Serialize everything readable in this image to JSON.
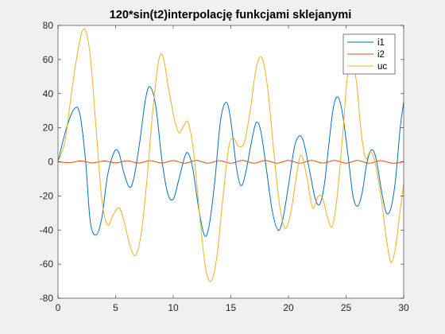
{
  "chart_data": {
    "type": "line",
    "title": "120*sin(t2)interpolację funkcjami sklejanymi",
    "xlabel": "",
    "ylabel": "",
    "xlim": [
      0,
      30
    ],
    "ylim": [
      -80,
      80
    ],
    "xticks": [
      0,
      5,
      10,
      15,
      20,
      25,
      30
    ],
    "yticks": [
      -80,
      -60,
      -40,
      -20,
      0,
      20,
      40,
      60,
      80
    ],
    "xtick_labels": [
      "0",
      "5",
      "10",
      "15",
      "20",
      "25",
      "30"
    ],
    "ytick_labels": [
      "-80",
      "-60",
      "-40",
      "-20",
      "0",
      "20",
      "40",
      "60",
      "80"
    ],
    "grid": false,
    "legend_position": "top-right",
    "series": [
      {
        "name": "i1",
        "color": "#0072BD",
        "points": [
          [
            0,
            0
          ],
          [
            0.7,
            19
          ],
          [
            1.4,
            31
          ],
          [
            1.9,
            28
          ],
          [
            2.4,
            0
          ],
          [
            2.8,
            -35
          ],
          [
            3.3,
            -43
          ],
          [
            3.8,
            -33
          ],
          [
            4.3,
            -8
          ],
          [
            4.9,
            6
          ],
          [
            5.3,
            5
          ],
          [
            5.7,
            -6
          ],
          [
            6.2,
            -15
          ],
          [
            6.6,
            -9
          ],
          [
            7.1,
            12
          ],
          [
            7.6,
            37
          ],
          [
            8.0,
            44
          ],
          [
            8.5,
            32
          ],
          [
            9.0,
            2
          ],
          [
            9.5,
            -18
          ],
          [
            10.0,
            -22
          ],
          [
            10.5,
            -10
          ],
          [
            11.0,
            3
          ],
          [
            11.3,
            5
          ],
          [
            11.7,
            -4
          ],
          [
            12.2,
            -27
          ],
          [
            12.7,
            -43
          ],
          [
            13.1,
            -38
          ],
          [
            13.6,
            -12
          ],
          [
            14.1,
            24
          ],
          [
            14.6,
            35
          ],
          [
            15.0,
            24
          ],
          [
            15.5,
            -4
          ],
          [
            15.9,
            -14
          ],
          [
            16.3,
            -6
          ],
          [
            16.8,
            12
          ],
          [
            17.2,
            23
          ],
          [
            17.6,
            18
          ],
          [
            18.1,
            -5
          ],
          [
            18.6,
            -29
          ],
          [
            19.1,
            -40
          ],
          [
            19.5,
            -34
          ],
          [
            20.0,
            -14
          ],
          [
            20.5,
            8
          ],
          [
            20.9,
            15
          ],
          [
            21.3,
            12
          ],
          [
            21.8,
            -4
          ],
          [
            22.3,
            -21
          ],
          [
            22.7,
            -25
          ],
          [
            23.1,
            -14
          ],
          [
            23.5,
            10
          ],
          [
            23.9,
            32
          ],
          [
            24.3,
            38
          ],
          [
            24.7,
            28
          ],
          [
            25.2,
            2
          ],
          [
            25.6,
            -20
          ],
          [
            26.0,
            -26
          ],
          [
            26.4,
            -18
          ],
          [
            26.8,
            -1
          ],
          [
            27.2,
            7
          ],
          [
            27.6,
            2
          ],
          [
            28.1,
            -18
          ],
          [
            28.5,
            -30
          ],
          [
            28.9,
            -27
          ],
          [
            29.3,
            -10
          ],
          [
            29.7,
            20
          ],
          [
            30.0,
            35
          ]
        ]
      },
      {
        "name": "i2",
        "color": "#D95319",
        "points": [
          [
            0,
            0
          ],
          [
            1.0,
            -0.5
          ],
          [
            2.0,
            0.5
          ],
          [
            3.0,
            -0.6
          ],
          [
            4.0,
            0.5
          ],
          [
            5.0,
            -0.6
          ],
          [
            6.0,
            0.6
          ],
          [
            7.0,
            -0.7
          ],
          [
            8.0,
            0.7
          ],
          [
            9.0,
            -0.7
          ],
          [
            10.0,
            0.7
          ],
          [
            11.0,
            -0.8
          ],
          [
            12.0,
            0.8
          ],
          [
            13.0,
            -0.8
          ],
          [
            14.0,
            0.7
          ],
          [
            15.0,
            -0.8
          ],
          [
            16.0,
            0.8
          ],
          [
            17.0,
            -0.8
          ],
          [
            18.0,
            0.8
          ],
          [
            19.0,
            -0.8
          ],
          [
            20.0,
            0.8
          ],
          [
            21.0,
            -0.8
          ],
          [
            22.0,
            0.8
          ],
          [
            23.0,
            -0.7
          ],
          [
            24.0,
            0.8
          ],
          [
            25.0,
            -0.8
          ],
          [
            26.0,
            0.8
          ],
          [
            27.0,
            -0.8
          ],
          [
            28.0,
            0.7
          ],
          [
            29.0,
            -0.8
          ],
          [
            30.0,
            0
          ]
        ]
      },
      {
        "name": "uc",
        "color": "#EDB120",
        "points": [
          [
            0,
            0
          ],
          [
            0.6,
            12
          ],
          [
            1.2,
            42
          ],
          [
            1.8,
            68
          ],
          [
            2.3,
            78
          ],
          [
            2.8,
            62
          ],
          [
            3.3,
            20
          ],
          [
            3.8,
            -22
          ],
          [
            4.3,
            -37
          ],
          [
            4.8,
            -31
          ],
          [
            5.3,
            -27
          ],
          [
            5.7,
            -34
          ],
          [
            6.2,
            -48
          ],
          [
            6.7,
            -55
          ],
          [
            7.2,
            -43
          ],
          [
            7.7,
            -12
          ],
          [
            8.2,
            28
          ],
          [
            8.7,
            58
          ],
          [
            9.1,
            62
          ],
          [
            9.6,
            43
          ],
          [
            10.1,
            25
          ],
          [
            10.5,
            17
          ],
          [
            10.9,
            21
          ],
          [
            11.3,
            23
          ],
          [
            11.8,
            4
          ],
          [
            12.3,
            -32
          ],
          [
            12.8,
            -62
          ],
          [
            13.3,
            -70
          ],
          [
            13.8,
            -55
          ],
          [
            14.3,
            -22
          ],
          [
            14.8,
            8
          ],
          [
            15.2,
            14
          ],
          [
            15.7,
            9
          ],
          [
            16.2,
            12
          ],
          [
            16.7,
            31
          ],
          [
            17.2,
            55
          ],
          [
            17.7,
            61
          ],
          [
            18.2,
            43
          ],
          [
            18.7,
            8
          ],
          [
            19.2,
            -24
          ],
          [
            19.7,
            -39
          ],
          [
            20.2,
            -30
          ],
          [
            20.7,
            -8
          ],
          [
            21.1,
            4
          ],
          [
            21.6,
            -9
          ],
          [
            22.1,
            -27
          ],
          [
            22.6,
            -20
          ],
          [
            23.0,
            -22
          ],
          [
            23.4,
            -33
          ],
          [
            23.8,
            -38
          ],
          [
            24.2,
            -22
          ],
          [
            24.7,
            15
          ],
          [
            25.1,
            49
          ],
          [
            25.5,
            58
          ],
          [
            25.9,
            47
          ],
          [
            26.3,
            18
          ],
          [
            26.7,
            2
          ],
          [
            27.1,
            6
          ],
          [
            27.5,
            0
          ],
          [
            28.0,
            -19
          ],
          [
            28.5,
            -45
          ],
          [
            28.9,
            -59
          ],
          [
            29.3,
            -50
          ],
          [
            29.7,
            -28
          ],
          [
            30.0,
            -13
          ]
        ]
      }
    ]
  }
}
